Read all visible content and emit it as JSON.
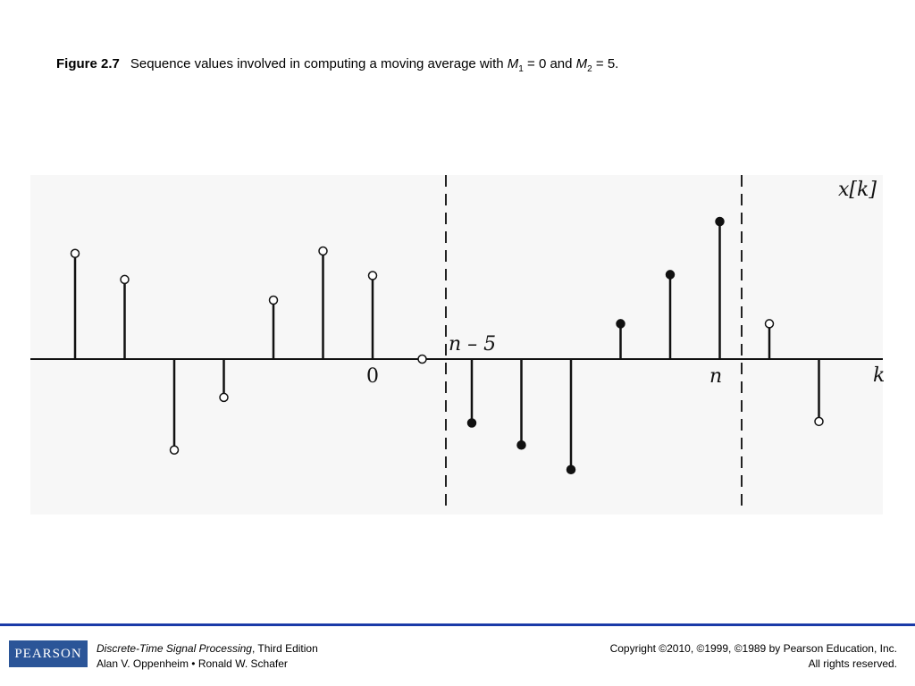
{
  "caption": {
    "figure_label": "Figure 2.7",
    "text": "Sequence values involved in computing a moving average with",
    "m1_var": "M",
    "m1_sub": "1",
    "m1_value": " = 0 and ",
    "m2_var": "M",
    "m2_sub": "2",
    "m2_value": " = 5."
  },
  "chart_data": {
    "type": "stem",
    "title": "",
    "ylabel": "x[k]",
    "xlabel": "k",
    "x_tick_labels": [
      "0",
      "n",
      "n – 5"
    ],
    "window": {
      "start_label": "n – 5",
      "end_label": "n"
    },
    "stems": [
      {
        "k": -6,
        "value": 2.15,
        "marker": "open"
      },
      {
        "k": -5,
        "value": 1.62,
        "marker": "open"
      },
      {
        "k": -4,
        "value": -1.85,
        "marker": "open"
      },
      {
        "k": -3,
        "value": -0.78,
        "marker": "open"
      },
      {
        "k": -2,
        "value": 1.2,
        "marker": "open"
      },
      {
        "k": -1,
        "value": 2.2,
        "marker": "open"
      },
      {
        "k": 0,
        "value": 1.7,
        "marker": "open"
      },
      {
        "k": 1,
        "value": 0.0,
        "marker": "open"
      },
      {
        "k": 2,
        "value": -1.3,
        "marker": "filled"
      },
      {
        "k": 3,
        "value": -1.75,
        "marker": "filled"
      },
      {
        "k": 4,
        "value": -2.25,
        "marker": "filled"
      },
      {
        "k": 5,
        "value": 0.72,
        "marker": "filled"
      },
      {
        "k": 6,
        "value": 1.72,
        "marker": "filled"
      },
      {
        "k": 7,
        "value": 2.8,
        "marker": "filled"
      },
      {
        "k": 8,
        "value": 0.72,
        "marker": "open"
      },
      {
        "k": 9,
        "value": -1.27,
        "marker": "open"
      }
    ]
  },
  "footer": {
    "logo_text": "PEARSON",
    "book_title": "Discrete-Time Signal Processing",
    "edition": ", Third Edition",
    "authors": "Alan V. Oppenheim • Ronald W. Schafer",
    "copyright": "Copyright ©2010, ©1999, ©1989 by Pearson Education, Inc.",
    "rights": "All rights reserved."
  }
}
